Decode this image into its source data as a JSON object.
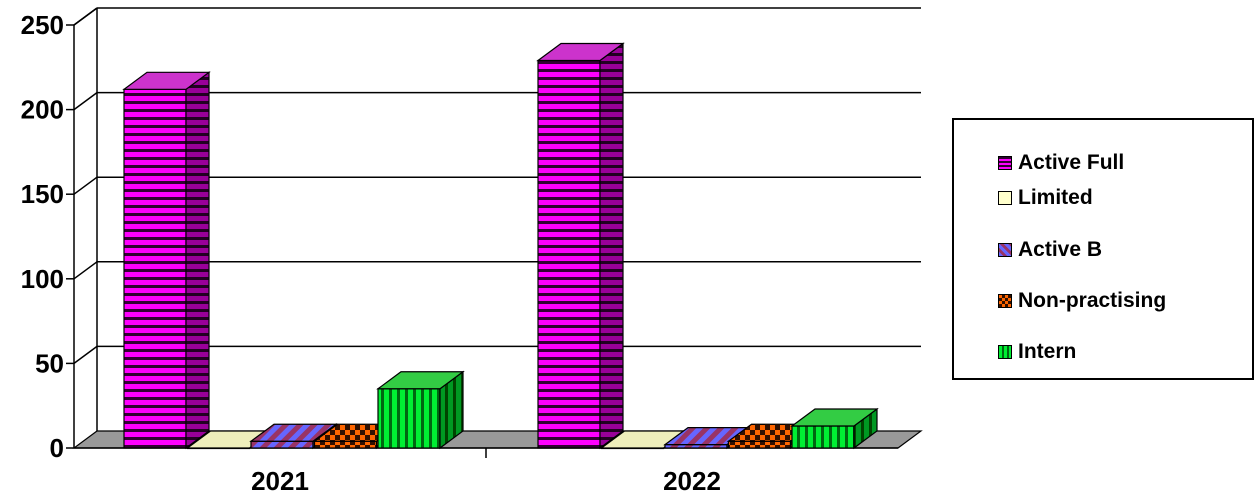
{
  "chart_data": {
    "type": "bar",
    "title": "",
    "xlabel": "",
    "ylabel": "",
    "categories": [
      "2021",
      "2022"
    ],
    "ylim": [
      0,
      250
    ],
    "yticks": [
      "0",
      "50",
      "100",
      "150",
      "200",
      "250"
    ],
    "grid": true,
    "legend_position": "right",
    "series": [
      {
        "name": "Active Full",
        "values": [
          212,
          229
        ],
        "color": "#ff00ff",
        "pattern": "horizontal-stripes"
      },
      {
        "name": "Limited",
        "values": [
          0,
          0
        ],
        "color": "#ffffcc",
        "pattern": "solid"
      },
      {
        "name": "Active B",
        "values": [
          4,
          2
        ],
        "color": "#6666ff",
        "pattern": "diagonal-stripes"
      },
      {
        "name": "Non-practising",
        "values": [
          4,
          4
        ],
        "color": "#ff6600",
        "pattern": "checker"
      },
      {
        "name": "Intern",
        "values": [
          35,
          13
        ],
        "color": "#00ee33",
        "pattern": "vertical-stripes"
      }
    ]
  }
}
